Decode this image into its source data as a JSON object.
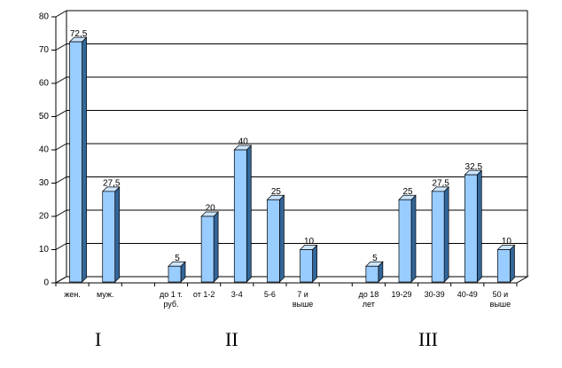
{
  "chart_data": {
    "type": "bar",
    "categories": [
      "жен.",
      "муж.",
      null,
      "до 1 т. руб.",
      "от 1-2",
      "3-4",
      "5-6",
      "7 и выше",
      null,
      "до 18 лет",
      "19-29",
      "30-39",
      "40-49",
      "50 и выше"
    ],
    "values": [
      72.5,
      27.5,
      null,
      5,
      20,
      40,
      25,
      10,
      null,
      5,
      25,
      27.5,
      32.5,
      10
    ],
    "value_labels": [
      "72,5",
      "27,5",
      null,
      "5",
      "20",
      "40",
      "25",
      "10",
      null,
      "5",
      "25",
      "27,5",
      "32,5",
      "10"
    ],
    "color": "#99ccff",
    "ylim": [
      0,
      80
    ],
    "yticks": [
      0,
      10,
      20,
      30,
      40,
      50,
      60,
      70,
      80
    ],
    "grid": true,
    "annotations": [
      "I",
      "II",
      "III"
    ]
  }
}
